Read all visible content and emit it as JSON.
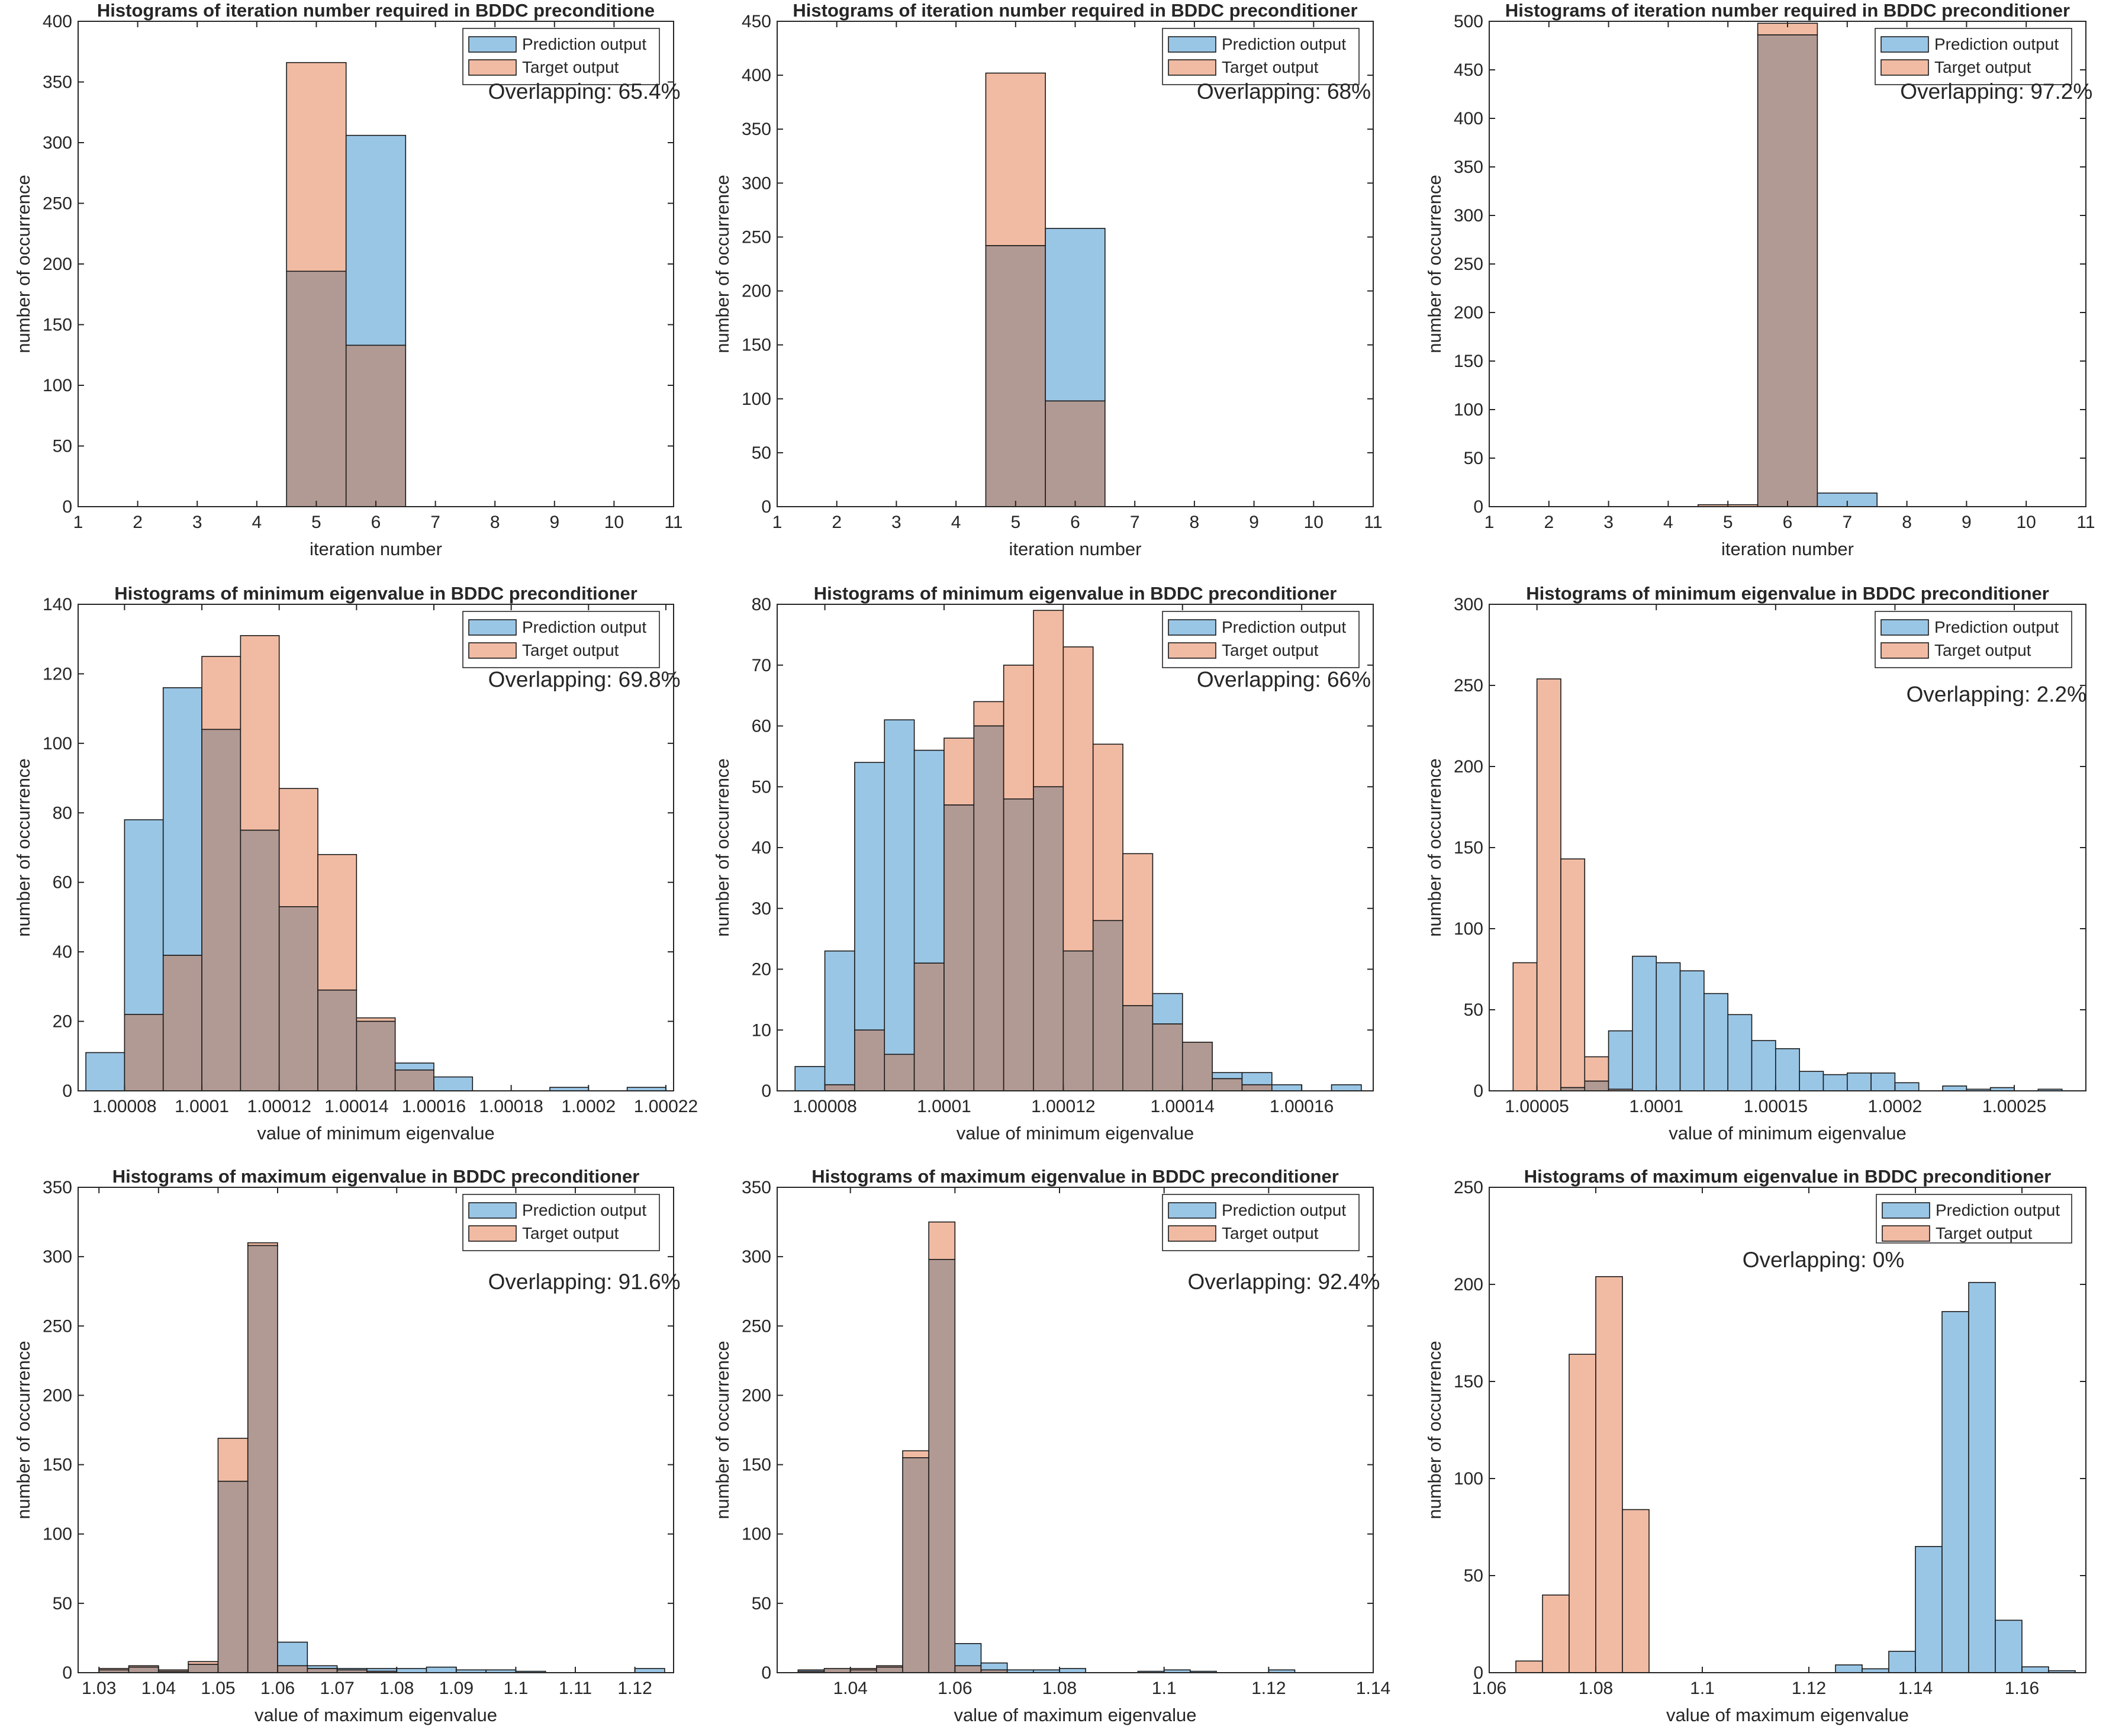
{
  "figure": {
    "legend_labels": [
      "Prediction output",
      "Target output"
    ]
  },
  "colors": {
    "prediction": "#9ac6e6",
    "target": "#f1bba3",
    "overlap": "#b29a94",
    "edge": "#1a1a1a",
    "axis": "#262626"
  },
  "chart_data": [
    {
      "type": "bar",
      "title": "Histograms of iteration number required in BDDC preconditione",
      "xlabel": "iteration number",
      "ylabel": "number of occurrence",
      "xlim": [
        1,
        11
      ],
      "ylim": [
        0,
        400
      ],
      "xticks": [
        1,
        2,
        3,
        4,
        5,
        6,
        7,
        8,
        9,
        10,
        11
      ],
      "xtick_labels": [
        "1",
        "2",
        "3",
        "4",
        "5",
        "6",
        "7",
        "8",
        "9",
        "10",
        "11"
      ],
      "yticks": [
        0,
        50,
        100,
        150,
        200,
        250,
        300,
        350,
        400
      ],
      "bin_edges": [
        4.5,
        5.5,
        6.5
      ],
      "series": [
        {
          "name": "Prediction output",
          "values": [
            194,
            306
          ]
        },
        {
          "name": "Target output",
          "values": [
            366,
            133
          ]
        }
      ],
      "annotation": "Overlapping: 65.4%"
    },
    {
      "type": "bar",
      "title": "Histograms of iteration number required in BDDC preconditioner",
      "xlabel": "iteration number",
      "ylabel": "number of occurrence",
      "xlim": [
        1,
        11
      ],
      "ylim": [
        0,
        450
      ],
      "xticks": [
        1,
        2,
        3,
        4,
        5,
        6,
        7,
        8,
        9,
        10,
        11
      ],
      "xtick_labels": [
        "1",
        "2",
        "3",
        "4",
        "5",
        "6",
        "7",
        "8",
        "9",
        "10",
        "11"
      ],
      "yticks": [
        0,
        50,
        100,
        150,
        200,
        250,
        300,
        350,
        400,
        450
      ],
      "bin_edges": [
        4.5,
        5.5,
        6.5
      ],
      "series": [
        {
          "name": "Prediction output",
          "values": [
            242,
            258
          ]
        },
        {
          "name": "Target output",
          "values": [
            402,
            98
          ]
        }
      ],
      "annotation": "Overlapping: 68%"
    },
    {
      "type": "bar",
      "title": "Histograms of iteration number required in BDDC preconditioner",
      "xlabel": "iteration number",
      "ylabel": "number of occurrence",
      "xlim": [
        1,
        11
      ],
      "ylim": [
        0,
        500
      ],
      "xticks": [
        1,
        2,
        3,
        4,
        5,
        6,
        7,
        8,
        9,
        10,
        11
      ],
      "xtick_labels": [
        "1",
        "2",
        "3",
        "4",
        "5",
        "6",
        "7",
        "8",
        "9",
        "10",
        "11"
      ],
      "yticks": [
        0,
        50,
        100,
        150,
        200,
        250,
        300,
        350,
        400,
        450,
        500
      ],
      "bin_edges": [
        4.5,
        5.5,
        6.5,
        7.5
      ],
      "series": [
        {
          "name": "Prediction output",
          "values": [
            0,
            486,
            14
          ]
        },
        {
          "name": "Target output",
          "values": [
            2,
            498,
            0
          ]
        }
      ],
      "annotation": "Overlapping: 97.2%"
    },
    {
      "type": "bar",
      "title": "Histograms of minimum eigenvalue in BDDC preconditioner",
      "xlabel": "value of minimum eigenvalue",
      "ylabel": "number of occurrence",
      "xlim": [
        1.000068,
        1.000222
      ],
      "ylim": [
        0,
        140
      ],
      "xticks": [
        1.00008,
        1.0001,
        1.00012,
        1.00014,
        1.00016,
        1.00018,
        1.0002,
        1.00022
      ],
      "xtick_labels": [
        "1.00008",
        "1.0001",
        "1.00012",
        "1.00014",
        "1.00016",
        "1.00018",
        "1.0002",
        "1.00022"
      ],
      "yticks": [
        0,
        20,
        40,
        60,
        80,
        100,
        120,
        140
      ],
      "bin_edges": [
        1.00007,
        1.00008,
        1.00009,
        1.0001,
        1.00011,
        1.00012,
        1.00013,
        1.00014,
        1.00015,
        1.00016,
        1.00017,
        1.00018,
        1.00019,
        1.0002,
        1.00021,
        1.00022
      ],
      "series": [
        {
          "name": "Prediction output",
          "values": [
            11,
            78,
            116,
            104,
            75,
            53,
            29,
            20,
            8,
            4,
            0,
            0,
            1,
            0,
            1
          ]
        },
        {
          "name": "Target output",
          "values": [
            0,
            22,
            39,
            125,
            131,
            87,
            68,
            21,
            6,
            0,
            0,
            0,
            0,
            0,
            0
          ]
        }
      ],
      "annotation": "Overlapping: 69.8%"
    },
    {
      "type": "bar",
      "title": "Histograms of minimum eigenvalue in BDDC preconditioner",
      "xlabel": "value of minimum eigenvalue",
      "ylabel": "number of occurrence",
      "xlim": [
        1.000072,
        1.000172
      ],
      "ylim": [
        0,
        80
      ],
      "xticks": [
        1.00008,
        1.0001,
        1.00012,
        1.00014,
        1.00016
      ],
      "xtick_labels": [
        "1.00008",
        "1.0001",
        "1.00012",
        "1.00014",
        "1.00016"
      ],
      "yticks": [
        0,
        10,
        20,
        30,
        40,
        50,
        60,
        70,
        80
      ],
      "bin_edges": [
        1.000075,
        1.00008,
        1.000085,
        1.00009,
        1.000095,
        1.0001,
        1.000105,
        1.00011,
        1.000115,
        1.00012,
        1.000125,
        1.00013,
        1.000135,
        1.00014,
        1.000145,
        1.00015,
        1.000155,
        1.00016,
        1.000165,
        1.00017
      ],
      "series": [
        {
          "name": "Prediction output",
          "values": [
            4,
            23,
            54,
            61,
            56,
            47,
            60,
            48,
            50,
            23,
            28,
            14,
            16,
            8,
            3,
            3,
            1,
            0,
            1
          ]
        },
        {
          "name": "Target output",
          "values": [
            0,
            1,
            10,
            6,
            21,
            58,
            64,
            70,
            79,
            73,
            57,
            39,
            11,
            8,
            2,
            1,
            0,
            0,
            0
          ]
        }
      ],
      "annotation": "Overlapping: 66%"
    },
    {
      "type": "bar",
      "title": "Histograms of minimum eigenvalue in BDDC preconditioner",
      "xlabel": "value of minimum eigenvalue",
      "ylabel": "number of occurrence",
      "xlim": [
        1.00003,
        1.00028
      ],
      "ylim": [
        0,
        300
      ],
      "xticks": [
        1.00005,
        1.0001,
        1.00015,
        1.0002,
        1.00025
      ],
      "xtick_labels": [
        "1.00005",
        "1.0001",
        "1.00015",
        "1.0002",
        "1.00025"
      ],
      "yticks": [
        0,
        50,
        100,
        150,
        200,
        250,
        300
      ],
      "bin_edges": [
        1.00004,
        1.00005,
        1.00006,
        1.00007,
        1.00008,
        1.00009,
        1.0001,
        1.00011,
        1.00012,
        1.00013,
        1.00014,
        1.00015,
        1.00016,
        1.00017,
        1.00018,
        1.00019,
        1.0002,
        1.00021,
        1.00022,
        1.00023,
        1.00024,
        1.00025,
        1.00026,
        1.00027
      ],
      "series": [
        {
          "name": "Prediction output",
          "values": [
            0,
            0,
            2,
            6,
            37,
            83,
            79,
            74,
            60,
            47,
            31,
            26,
            12,
            10,
            11,
            11,
            5,
            0,
            3,
            1,
            2,
            0,
            1
          ]
        },
        {
          "name": "Target output",
          "values": [
            79,
            254,
            143,
            21,
            1,
            0,
            0,
            0,
            0,
            0,
            0,
            0,
            0,
            0,
            0,
            0,
            0,
            0,
            0,
            0,
            0,
            0,
            0
          ]
        }
      ],
      "annotation": "Overlapping: 2.2%"
    },
    {
      "type": "bar",
      "title": "Histograms of maximum eigenvalue in BDDC preconditioner",
      "xlabel": "value of maximum eigenvalue",
      "ylabel": "number of occurrence",
      "xlim": [
        1.0265,
        1.1265
      ],
      "ylim": [
        0,
        350
      ],
      "xticks": [
        1.03,
        1.04,
        1.05,
        1.06,
        1.07,
        1.08,
        1.09,
        1.1,
        1.11,
        1.12
      ],
      "xtick_labels": [
        "1.03",
        "1.04",
        "1.05",
        "1.06",
        "1.07",
        "1.08",
        "1.09",
        "1.1",
        "1.11",
        "1.12"
      ],
      "yticks": [
        0,
        50,
        100,
        150,
        200,
        250,
        300,
        350
      ],
      "bin_edges": [
        1.03,
        1.035,
        1.04,
        1.045,
        1.05,
        1.055,
        1.06,
        1.065,
        1.07,
        1.075,
        1.08,
        1.085,
        1.09,
        1.095,
        1.1,
        1.105,
        1.11,
        1.115,
        1.12,
        1.125
      ],
      "series": [
        {
          "name": "Prediction output",
          "values": [
            2,
            4,
            1,
            6,
            138,
            308,
            22,
            5,
            3,
            3,
            3,
            4,
            2,
            2,
            1,
            0,
            0,
            0,
            3
          ]
        },
        {
          "name": "Target output",
          "values": [
            3,
            5,
            2,
            8,
            169,
            310,
            5,
            3,
            2,
            1,
            0,
            0,
            0,
            0,
            0,
            0,
            0,
            0,
            0
          ]
        }
      ],
      "annotation": "Overlapping: 91.6%"
    },
    {
      "type": "bar",
      "title": "Histograms of maximum eigenvalue in BDDC preconditioner",
      "xlabel": "value of maximum eigenvalue",
      "ylabel": "number of occurrence",
      "xlim": [
        1.026,
        1.14
      ],
      "ylim": [
        0,
        350
      ],
      "xticks": [
        1.04,
        1.06,
        1.08,
        1.1,
        1.12,
        1.14
      ],
      "xtick_labels": [
        "1.04",
        "1.06",
        "1.08",
        "1.1",
        "1.12",
        "1.14"
      ],
      "yticks": [
        0,
        50,
        100,
        150,
        200,
        250,
        300,
        350
      ],
      "bin_edges": [
        1.03,
        1.035,
        1.04,
        1.045,
        1.05,
        1.055,
        1.06,
        1.065,
        1.07,
        1.075,
        1.08,
        1.085,
        1.09,
        1.095,
        1.1,
        1.105,
        1.11,
        1.115,
        1.12,
        1.125,
        1.13,
        1.135
      ],
      "series": [
        {
          "name": "Prediction output",
          "values": [
            2,
            3,
            2,
            4,
            155,
            298,
            21,
            7,
            2,
            2,
            3,
            0,
            0,
            1,
            2,
            1,
            0,
            0,
            2,
            0,
            0,
            1
          ]
        },
        {
          "name": "Target output",
          "values": [
            1,
            3,
            3,
            5,
            160,
            325,
            5,
            2,
            0,
            0,
            0,
            0,
            0,
            0,
            0,
            0,
            0,
            0,
            0,
            0,
            0,
            0
          ]
        }
      ],
      "annotation": "Overlapping: 92.4%"
    },
    {
      "type": "bar",
      "title": "Histograms of maximum eigenvalue in BDDC preconditioner",
      "xlabel": "value of maximum eigenvalue",
      "ylabel": "number of occurrence",
      "xlim": [
        1.06,
        1.172
      ],
      "ylim": [
        0,
        250
      ],
      "xticks": [
        1.06,
        1.08,
        1.1,
        1.12,
        1.14,
        1.16
      ],
      "xtick_labels": [
        "1.06",
        "1.08",
        "1.1",
        "1.12",
        "1.14",
        "1.16"
      ],
      "yticks": [
        0,
        50,
        100,
        150,
        200,
        250
      ],
      "bin_edges": [
        1.065,
        1.07,
        1.075,
        1.08,
        1.085,
        1.09,
        1.095,
        1.1,
        1.105,
        1.11,
        1.115,
        1.12,
        1.125,
        1.13,
        1.135,
        1.14,
        1.145,
        1.15,
        1.155,
        1.16,
        1.165,
        1.17
      ],
      "series": [
        {
          "name": "Prediction output",
          "values": [
            0,
            0,
            0,
            0,
            0,
            0,
            0,
            0,
            0,
            0,
            0,
            0,
            4,
            2,
            11,
            65,
            186,
            201,
            27,
            3,
            1
          ]
        },
        {
          "name": "Target output",
          "values": [
            6,
            40,
            164,
            204,
            84,
            0,
            0,
            0,
            0,
            0,
            0,
            0,
            0,
            0,
            0,
            0,
            0,
            0,
            0,
            0,
            0
          ]
        }
      ],
      "annotation": "Overlapping: 0%"
    }
  ]
}
